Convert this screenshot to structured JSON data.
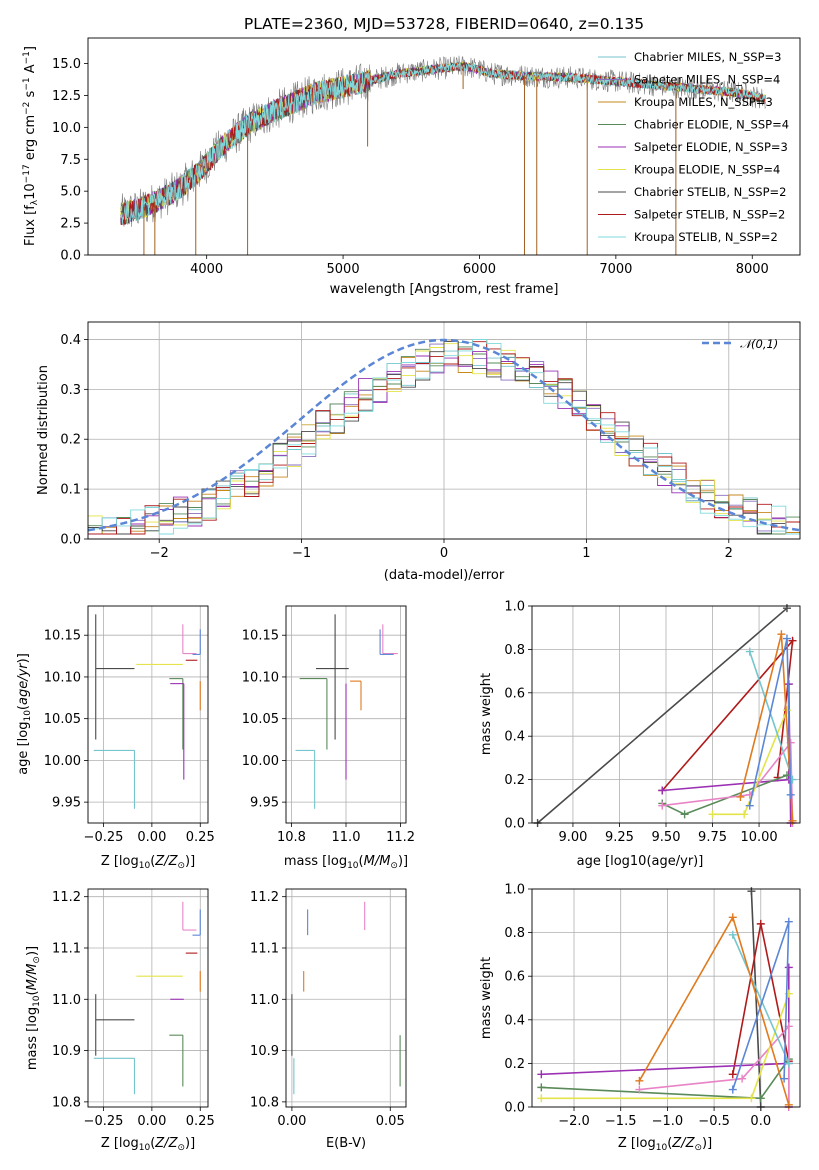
{
  "figure": {
    "title": "PLATE=2360, MJD=53728, FIBERID=0640, z=0.135"
  },
  "chart_data": [
    {
      "id": "spectrum",
      "type": "line",
      "title": "PLATE=2360, MJD=53728, FIBERID=0640, z=0.135",
      "xlabel": "wavelength [Angstrom, rest frame]",
      "ylabel": "Flux [f_λ 10^-17 erg cm^-2 s^-1 A^-1]",
      "xlim": [
        3130,
        8350
      ],
      "ylim": [
        0,
        17
      ],
      "xticks": [
        "4000",
        "5000",
        "6000",
        "7000",
        "8000"
      ],
      "yticks": [
        "0.0",
        "2.5",
        "5.0",
        "7.5",
        "10.0",
        "12.5",
        "15.0"
      ],
      "grid": false,
      "legend_position": "upper-right",
      "series": [
        {
          "name": "Chabrier MILES, N_SSP=3",
          "color": "#74c6ce"
        },
        {
          "name": "Salpeter MILES, N_SSP=4",
          "color": "#8a6fbf"
        },
        {
          "name": "Kroupa MILES, N_SSP=3",
          "color": "#c8881e"
        },
        {
          "name": "Chabrier ELODIE, N_SSP=4",
          "color": "#5a8a5a"
        },
        {
          "name": "Salpeter ELODIE, N_SSP=3",
          "color": "#9b30b3"
        },
        {
          "name": "Kroupa ELODIE, N_SSP=4",
          "color": "#e3e34a"
        },
        {
          "name": "Chabrier STELIB, N_SSP=2",
          "color": "#4a4a4a"
        },
        {
          "name": "Salpeter STELIB, N_SSP=2",
          "color": "#b01a1a"
        },
        {
          "name": "Kroupa STELIB, N_SSP=2",
          "color": "#7fd9dc"
        }
      ],
      "continuum_anchors": {
        "x": [
          3370,
          3500,
          3650,
          3800,
          3950,
          4100,
          4300,
          4500,
          4800,
          5100,
          5400,
          5700,
          5900,
          6100,
          6400,
          6700,
          7000,
          7300,
          7600,
          7900,
          8100
        ],
        "y": [
          3.2,
          3.6,
          4.3,
          5.2,
          6.6,
          8.4,
          10.2,
          11.3,
          12.7,
          13.4,
          14.2,
          14.6,
          14.8,
          14.2,
          14.0,
          13.9,
          13.6,
          13.3,
          13.0,
          12.7,
          12.2
        ]
      },
      "spikes": [
        {
          "x": 3540,
          "y": 0.0
        },
        {
          "x": 3620,
          "y": 0.0
        },
        {
          "x": 3920,
          "y": 0.0
        },
        {
          "x": 4300,
          "y": 0.0
        },
        {
          "x": 5180,
          "y": 8.5
        },
        {
          "x": 5880,
          "y": 13.0
        },
        {
          "x": 6330,
          "y": 0.0
        },
        {
          "x": 6420,
          "y": 0.0
        },
        {
          "x": 6790,
          "y": 0.0
        },
        {
          "x": 7440,
          "y": 0.0
        }
      ]
    },
    {
      "id": "residuals",
      "type": "line",
      "xlabel": "(data-model)/error",
      "ylabel": "Normed distribution",
      "xlim": [
        -2.5,
        2.5
      ],
      "ylim": [
        0,
        0.435
      ],
      "xticks": [
        "−2",
        "−1",
        "0",
        "1",
        "2"
      ],
      "yticks": [
        "0.0",
        "0.1",
        "0.2",
        "0.3",
        "0.4"
      ],
      "grid": true,
      "legend_position": "upper-right",
      "reference": {
        "name": "𝒩(0,1)",
        "color": "#5b86d6",
        "style": "dashed"
      },
      "histogram_bin_width": 0.1
    },
    {
      "id": "age_vs_Z",
      "type": "scatter",
      "xlabel": "Z [log10(Z/Z⊙)]",
      "ylabel": "age  [log10(age/yr)]",
      "xlim": [
        -0.33,
        0.29
      ],
      "ylim": [
        9.925,
        10.185
      ],
      "xticks": [
        "−0.25",
        "0.00",
        "0.25"
      ],
      "yticks": [
        "9.95",
        "10.00",
        "10.05",
        "10.10",
        "10.15"
      ],
      "grid": true
    },
    {
      "id": "age_vs_mass",
      "type": "scatter",
      "xlabel": "mass [log10(M/M⊙)]",
      "ylabel": "",
      "xlim": [
        10.78,
        11.22
      ],
      "ylim": [
        9.925,
        10.185
      ],
      "xticks": [
        "10.8",
        "11.0",
        "11.2"
      ],
      "yticks": [
        "9.95",
        "10.00",
        "10.05",
        "10.10",
        "10.15"
      ],
      "grid": true
    },
    {
      "id": "weight_vs_age",
      "type": "line",
      "xlabel": "age  [log10(age/yr)]",
      "ylabel": "mass weight",
      "xlim": [
        8.78,
        10.22
      ],
      "ylim": [
        0,
        1
      ],
      "xticks": [
        "9.00",
        "9.25",
        "9.50",
        "9.75",
        "10.00"
      ],
      "yticks": [
        "0.0",
        "0.2",
        "0.4",
        "0.6",
        "0.8",
        "1.0"
      ],
      "grid": true
    },
    {
      "id": "mass_vs_Z",
      "type": "scatter",
      "xlabel": "Z [log10(Z/Z⊙)]",
      "ylabel": "mass [log10(M/M⊙)]",
      "xlim": [
        -0.33,
        0.29
      ],
      "ylim": [
        10.79,
        11.215
      ],
      "xticks": [
        "−0.25",
        "0.00",
        "0.25"
      ],
      "yticks": [
        "10.8",
        "10.9",
        "11.0",
        "11.1",
        "11.2"
      ],
      "grid": true
    },
    {
      "id": "mass_vs_ebv",
      "type": "scatter",
      "xlabel": "E(B-V)",
      "ylabel": "",
      "xlim": [
        -0.003,
        0.058
      ],
      "ylim": [
        10.79,
        11.215
      ],
      "xticks": [
        "0.00",
        "0.05"
      ],
      "yticks": [
        "10.8",
        "10.9",
        "11.0",
        "11.1",
        "11.2"
      ],
      "grid": true
    },
    {
      "id": "weight_vs_Z",
      "type": "line",
      "xlabel": "Z [log10(Z/Z⊙)]",
      "ylabel": "mass weight",
      "xlim": [
        -2.45,
        0.42
      ],
      "ylim": [
        0,
        1
      ],
      "xticks": [
        "−2.0",
        "−1.5",
        "−1.0",
        "−0.5",
        "0.0"
      ],
      "yticks": [
        "0.0",
        "0.2",
        "0.4",
        "0.6",
        "0.8",
        "1.0"
      ],
      "grid": true
    }
  ],
  "models": [
    {
      "color": "#74c6ce",
      "Z": -0.09,
      "Zerr": [
        0.21,
        0.0
      ],
      "age": 10.012,
      "ageerr": [
        0.07,
        0.0
      ],
      "mass": 10.885,
      "masserr": [
        0.07,
        0.0
      ],
      "ebv": 0.001,
      "ebverr": [
        0.0,
        0.0
      ]
    },
    {
      "color": "#4a4a4a",
      "Z": -0.29,
      "Zerr": [
        0.0,
        0.2
      ],
      "age": 10.11,
      "ageerr": [
        0.085,
        0.065
      ],
      "mass": 10.96,
      "masserr": [
        0.07,
        0.05
      ],
      "ebv": 0.0,
      "ebverr": [
        0.0,
        0.0
      ]
    },
    {
      "color": "#5a8a5a",
      "Z": 0.16,
      "Zerr": [
        0.07,
        0.0
      ],
      "age": 10.098,
      "ageerr": [
        0.085,
        0.0
      ],
      "mass": 10.93,
      "masserr": [
        0.1,
        0.0
      ],
      "ebv": 0.055,
      "ebverr": [
        0.0,
        0.0
      ]
    },
    {
      "color": "#9b30b3",
      "Z": 0.165,
      "Zerr": [
        0.07,
        0.0
      ],
      "age": 10.092,
      "ageerr": [
        0.115,
        0.0
      ],
      "mass": 11.0,
      "masserr": [
        0.0,
        0.0
      ],
      "ebv": 0.054,
      "ebverr": [
        0.0,
        0.0
      ]
    },
    {
      "color": "#e3e34a",
      "Z": 0.16,
      "Zerr": [
        0.24,
        0.0
      ],
      "age": 10.115,
      "ageerr": [
        0.0,
        0.0
      ],
      "mass": 11.045,
      "masserr": [
        0.0,
        0.0
      ],
      "ebv": 0.003,
      "ebverr": [
        0.0,
        0.0
      ]
    },
    {
      "color": "#e884c6",
      "Z": 0.16,
      "Zerr": [
        0.0,
        0.07
      ],
      "age": 10.128,
      "ageerr": [
        0.0,
        0.035
      ],
      "mass": 11.135,
      "masserr": [
        0.0,
        0.055
      ],
      "ebv": 0.037,
      "ebverr": [
        0.0,
        0.0
      ]
    },
    {
      "color": "#b01a1a",
      "Z": 0.235,
      "Zerr": [
        0.06,
        0.0
      ],
      "age": 10.12,
      "ageerr": [
        0.0,
        0.0
      ],
      "mass": 11.09,
      "masserr": [
        0.0,
        0.0
      ],
      "ebv": 0.0,
      "ebverr": [
        0.0,
        0.0
      ]
    },
    {
      "color": "#e07a1e",
      "Z": 0.25,
      "Zerr": [
        0.0,
        0.0
      ],
      "age": 10.095,
      "ageerr": [
        0.035,
        0.0
      ],
      "mass": 11.055,
      "masserr": [
        0.04,
        0.0
      ],
      "ebv": 0.006,
      "ebverr": [
        0.0,
        0.0
      ]
    },
    {
      "color": "#5b86d6",
      "Z": 0.25,
      "Zerr": [
        0.04,
        0.0
      ],
      "age": 10.127,
      "ageerr": [
        0.0,
        0.03
      ],
      "mass": 11.125,
      "masserr": [
        0.0,
        0.05
      ],
      "ebv": 0.008,
      "ebverr": [
        0.0,
        0.0
      ]
    }
  ],
  "weight_tracks": [
    {
      "color": "#4a4a4a",
      "ages": [
        8.81,
        10.15
      ],
      "Z": [
        0.0,
        -0.1
      ],
      "w": [
        0.0,
        0.99
      ]
    },
    {
      "color": "#b01a1a",
      "ages": [
        9.48,
        10.18,
        10.1
      ],
      "Z": [
        -0.3,
        0.0,
        0.3
      ],
      "w": [
        0.15,
        0.84,
        0.21
      ]
    },
    {
      "color": "#9b30b3",
      "ages": [
        9.48,
        10.16,
        10.16,
        10.17
      ],
      "Z": [
        -2.35,
        0.3,
        0.3,
        0.3
      ],
      "w": [
        0.15,
        0.2,
        0.64,
        0.0
      ]
    },
    {
      "color": "#5a8a5a",
      "ages": [
        9.48,
        9.6,
        10.15
      ],
      "Z": [
        -2.35,
        0.0,
        0.3
      ],
      "w": [
        0.09,
        0.04,
        0.22
      ]
    },
    {
      "color": "#e884c6",
      "ages": [
        9.48,
        9.95,
        10.17,
        10.18
      ],
      "Z": [
        -1.3,
        -0.2,
        0.3,
        0.3
      ],
      "w": [
        0.08,
        0.13,
        0.37,
        0.0
      ]
    },
    {
      "color": "#e3e34a",
      "ages": [
        9.75,
        9.92,
        10.15
      ],
      "Z": [
        -2.35,
        -0.1,
        0.3
      ],
      "w": [
        0.04,
        0.04,
        0.52
      ]
    },
    {
      "color": "#74c6ce",
      "ages": [
        9.95,
        10.18
      ],
      "Z": [
        -0.3,
        0.3
      ],
      "w": [
        0.79,
        0.2
      ]
    },
    {
      "color": "#e07a1e",
      "ages": [
        9.9,
        10.12,
        10.18
      ],
      "Z": [
        -1.3,
        -0.3,
        0.3
      ],
      "w": [
        0.12,
        0.87,
        0.01
      ]
    },
    {
      "color": "#5b86d6",
      "ages": [
        9.95,
        10.15,
        10.17
      ],
      "Z": [
        -0.3,
        0.3,
        0.25
      ],
      "w": [
        0.08,
        0.85,
        0.13
      ]
    }
  ]
}
